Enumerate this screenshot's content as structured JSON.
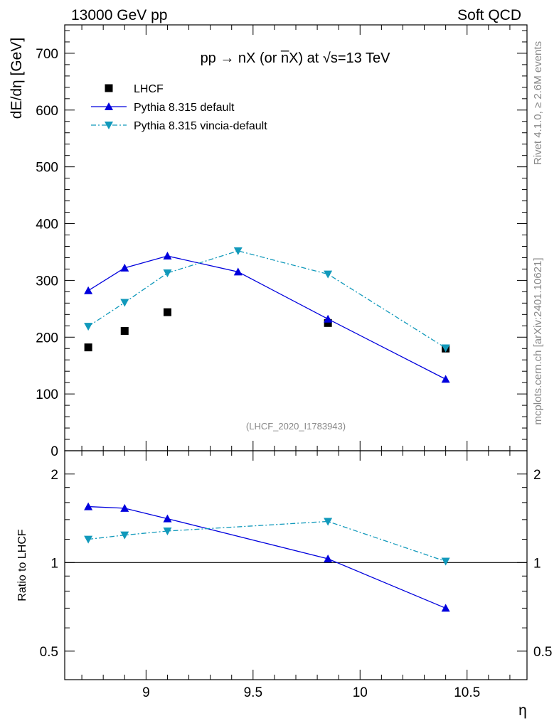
{
  "header": {
    "left": "13000 GeV pp",
    "right": "Soft QCD"
  },
  "side_labels": {
    "rivet": "Rivet 4.1.0, ≥ 2.6M events",
    "mcplots": "mcplots.cern.ch [arXiv:2401.10621]"
  },
  "chart_data": {
    "type": "scatter",
    "title": "pp → nX (or n̅X) at √s=13 TeV",
    "analysis_id": "(LHCF_2020_I1783943)",
    "xlabel": "η",
    "ylabel": "dE/dη [GeV]",
    "ratio_ylabel": "Ratio to LHCF",
    "xlim": [
      8.62,
      10.78
    ],
    "ylim": [
      0,
      750
    ],
    "ratio_ylim": [
      0.4,
      2.4
    ],
    "x_ticks": [
      9,
      9.5,
      10,
      10.5
    ],
    "x_tick_labels": [
      "9",
      "9.5",
      "10",
      "10.5"
    ],
    "y_ticks": [
      0,
      100,
      200,
      300,
      400,
      500,
      600,
      700
    ],
    "y_tick_labels": [
      "0",
      "100",
      "200",
      "300",
      "400",
      "500",
      "600",
      "700"
    ],
    "ratio_y_ticks": [
      0.5,
      1,
      2
    ],
    "ratio_y_tick_labels": [
      "0.5",
      "1",
      "2"
    ],
    "legend_placement": "top-left",
    "series": [
      {
        "name": "LHCF",
        "style": "markers",
        "marker": "square",
        "color": "#000000",
        "x": [
          8.73,
          8.9,
          9.1,
          9.85,
          10.4
        ],
        "values": [
          182,
          211,
          244,
          225,
          180
        ]
      },
      {
        "name": "Pythia 8.315 default",
        "style": "solid",
        "marker": "triangle-up",
        "color": "#0000dd",
        "x": [
          8.73,
          8.9,
          9.1,
          9.43,
          9.85,
          10.4
        ],
        "values": [
          282,
          322,
          343,
          315,
          232,
          126
        ]
      },
      {
        "name": "Pythia 8.315 vincia-default",
        "style": "dashdot",
        "marker": "triangle-down",
        "color": "#1199bb",
        "x": [
          8.73,
          8.9,
          9.1,
          9.43,
          9.85,
          10.4
        ],
        "values": [
          219,
          261,
          313,
          352,
          311,
          181
        ]
      }
    ],
    "ratio_series": [
      {
        "name": "Pythia 8.315 default",
        "x": [
          8.73,
          8.9,
          9.1,
          9.85,
          10.4
        ],
        "values": [
          1.55,
          1.53,
          1.41,
          1.03,
          0.7
        ]
      },
      {
        "name": "Pythia 8.315 vincia-default",
        "x": [
          8.73,
          8.9,
          9.1,
          9.85,
          10.4
        ],
        "values": [
          1.2,
          1.24,
          1.28,
          1.38,
          1.01
        ]
      }
    ]
  }
}
